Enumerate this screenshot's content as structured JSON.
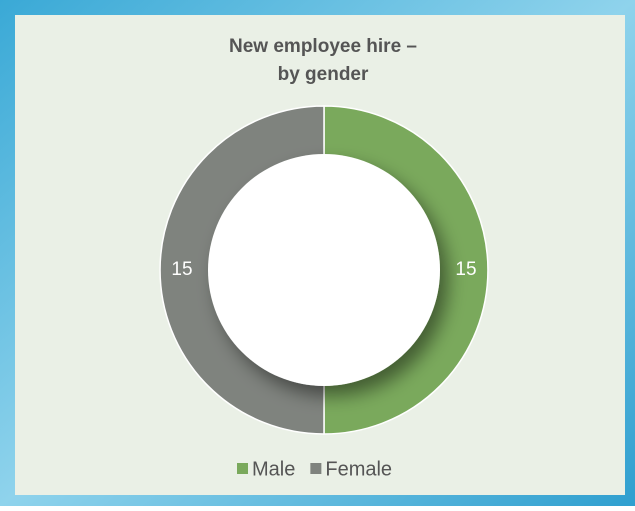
{
  "chart_data": {
    "type": "donut",
    "title": "New employee hire –",
    "subtitle": "by gender",
    "categories": [
      "Male",
      "Female"
    ],
    "values": [
      15,
      15
    ],
    "colors": [
      "#7aa95c",
      "#7f837e"
    ],
    "legend": "bottom"
  }
}
